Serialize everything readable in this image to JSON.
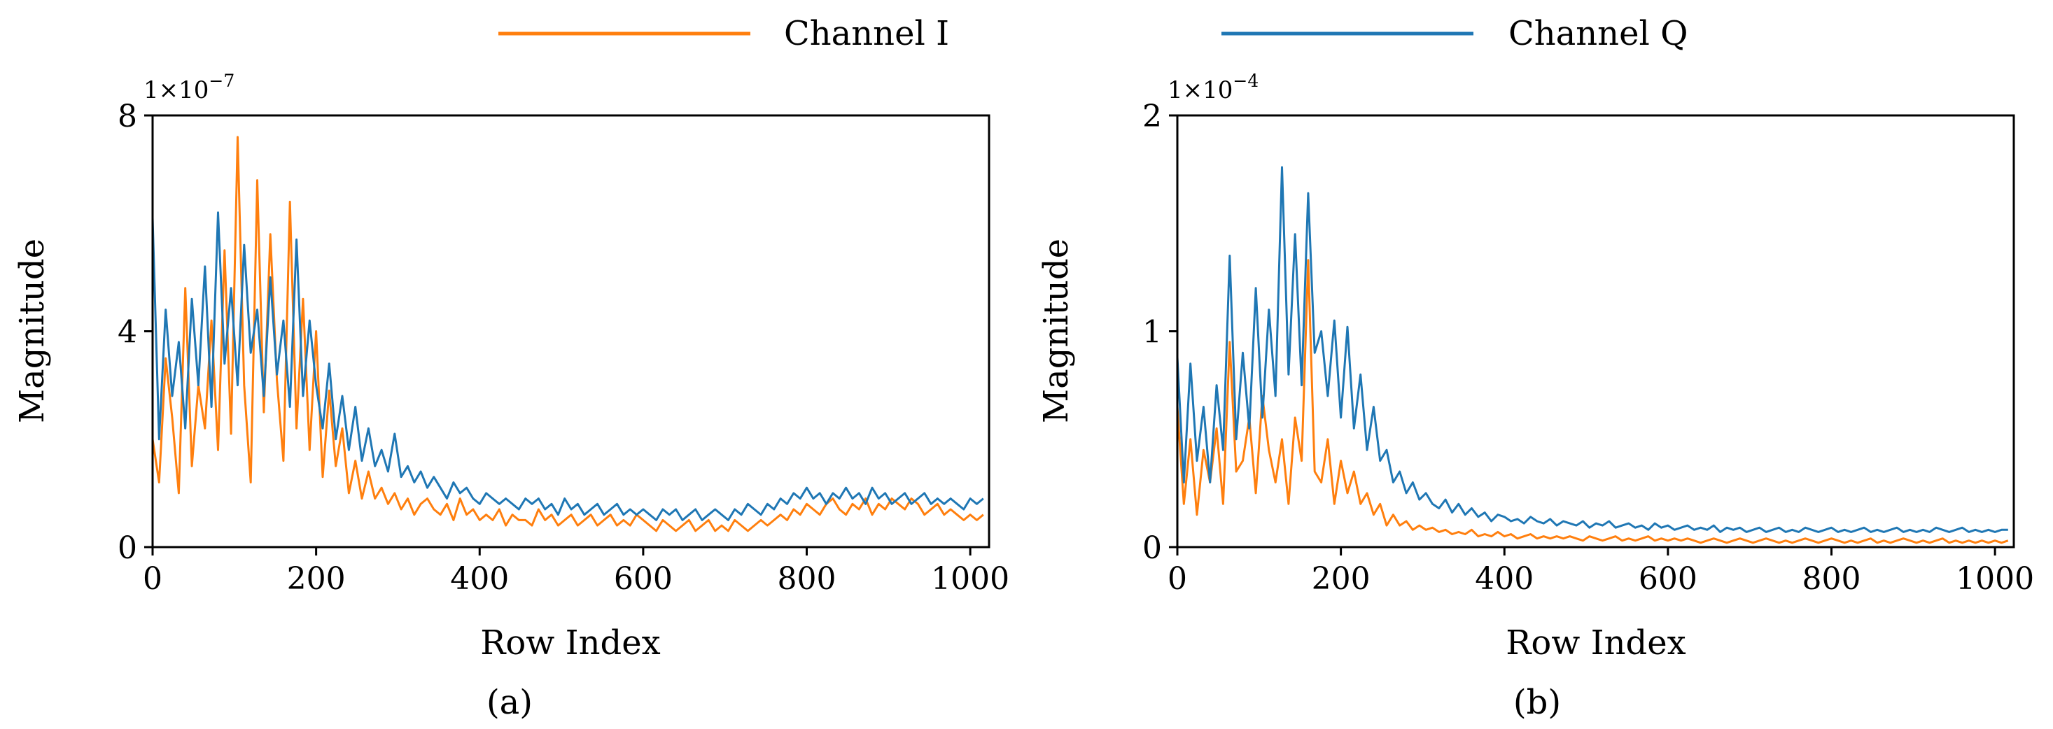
{
  "legend": {
    "entries": [
      {
        "label": "Channel I",
        "color": "#ff7f0e"
      },
      {
        "label": "Channel Q",
        "color": "#1f77b4"
      }
    ],
    "placement": "top-center"
  },
  "chart_data": [
    {
      "type": "line",
      "panel_label": "(a)",
      "title": "",
      "xlabel": "Row Index",
      "ylabel": "Magnitude",
      "exponent_base": "1×10",
      "exponent_power": "−7",
      "xlim": [
        0,
        1023
      ],
      "ylim": [
        0,
        8
      ],
      "xticks": [
        0,
        200,
        400,
        600,
        800,
        1000
      ],
      "yticks": [
        0,
        4,
        8
      ],
      "grid": false,
      "series": [
        {
          "name": "Channel I",
          "color": "#ff7f0e",
          "sampling": "every 8 rows, x = 0..1016",
          "values": [
            2.0,
            1.2,
            3.5,
            2.4,
            1.0,
            4.8,
            1.5,
            3.0,
            2.2,
            4.2,
            1.8,
            5.5,
            2.1,
            7.6,
            3.0,
            1.2,
            6.8,
            2.5,
            5.8,
            3.1,
            1.6,
            6.4,
            2.2,
            4.6,
            1.8,
            4.0,
            1.3,
            2.9,
            1.5,
            2.2,
            1.0,
            1.6,
            0.9,
            1.4,
            0.9,
            1.1,
            0.8,
            1.0,
            0.7,
            0.9,
            0.6,
            0.8,
            0.9,
            0.7,
            0.6,
            0.8,
            0.5,
            0.9,
            0.6,
            0.7,
            0.5,
            0.6,
            0.5,
            0.7,
            0.4,
            0.6,
            0.5,
            0.5,
            0.4,
            0.7,
            0.5,
            0.6,
            0.4,
            0.5,
            0.6,
            0.4,
            0.5,
            0.6,
            0.4,
            0.5,
            0.6,
            0.4,
            0.5,
            0.4,
            0.6,
            0.5,
            0.4,
            0.3,
            0.5,
            0.4,
            0.3,
            0.4,
            0.5,
            0.3,
            0.4,
            0.5,
            0.3,
            0.4,
            0.3,
            0.5,
            0.4,
            0.3,
            0.4,
            0.5,
            0.4,
            0.5,
            0.6,
            0.5,
            0.7,
            0.6,
            0.8,
            0.7,
            0.6,
            0.8,
            0.9,
            0.7,
            0.6,
            0.8,
            0.7,
            0.9,
            0.6,
            0.8,
            0.7,
            0.9,
            0.8,
            0.7,
            0.9,
            0.8,
            0.6,
            0.7,
            0.8,
            0.6,
            0.7,
            0.6,
            0.5,
            0.6,
            0.5,
            0.6
          ]
        },
        {
          "name": "Channel Q",
          "color": "#1f77b4",
          "sampling": "every 8 rows, x = 0..1016",
          "values": [
            6.1,
            2.0,
            4.4,
            2.8,
            3.8,
            2.2,
            4.6,
            3.0,
            5.2,
            2.6,
            6.2,
            3.4,
            4.8,
            3.0,
            5.6,
            3.6,
            4.4,
            2.8,
            5.0,
            3.2,
            4.2,
            2.6,
            5.7,
            2.8,
            4.2,
            3.0,
            2.2,
            3.4,
            2.0,
            2.8,
            1.8,
            2.6,
            1.6,
            2.2,
            1.5,
            1.8,
            1.4,
            2.1,
            1.3,
            1.5,
            1.2,
            1.4,
            1.1,
            1.3,
            1.1,
            0.9,
            1.2,
            1.0,
            1.1,
            0.9,
            0.8,
            1.0,
            0.9,
            0.8,
            0.9,
            0.8,
            0.7,
            0.9,
            0.8,
            0.9,
            0.7,
            0.8,
            0.6,
            0.9,
            0.7,
            0.8,
            0.6,
            0.7,
            0.8,
            0.6,
            0.7,
            0.8,
            0.6,
            0.7,
            0.6,
            0.7,
            0.6,
            0.5,
            0.7,
            0.6,
            0.7,
            0.5,
            0.6,
            0.7,
            0.5,
            0.6,
            0.7,
            0.6,
            0.5,
            0.7,
            0.6,
            0.8,
            0.7,
            0.6,
            0.8,
            0.7,
            0.9,
            0.8,
            1.0,
            0.9,
            1.1,
            0.9,
            1.0,
            0.8,
            1.0,
            0.9,
            1.1,
            0.9,
            1.0,
            0.8,
            1.1,
            0.9,
            1.0,
            0.8,
            0.9,
            1.0,
            0.8,
            0.9,
            1.0,
            0.8,
            0.9,
            0.8,
            0.9,
            0.8,
            0.7,
            0.9,
            0.8,
            0.9
          ]
        }
      ]
    },
    {
      "type": "line",
      "panel_label": "(b)",
      "title": "",
      "xlabel": "Row Index",
      "ylabel": "Magnitude",
      "exponent_base": "1×10",
      "exponent_power": "−4",
      "xlim": [
        0,
        1023
      ],
      "ylim": [
        0,
        2
      ],
      "xticks": [
        0,
        200,
        400,
        600,
        800,
        1000
      ],
      "yticks": [
        0,
        1,
        2
      ],
      "grid": false,
      "series": [
        {
          "name": "Channel I",
          "color": "#ff7f0e",
          "sampling": "every 8 rows, x = 0..1016",
          "values": [
            0.65,
            0.2,
            0.5,
            0.15,
            0.45,
            0.3,
            0.55,
            0.2,
            0.95,
            0.35,
            0.4,
            0.6,
            0.25,
            0.7,
            0.45,
            0.3,
            0.5,
            0.2,
            0.6,
            0.4,
            1.33,
            0.35,
            0.3,
            0.5,
            0.2,
            0.4,
            0.25,
            0.35,
            0.2,
            0.25,
            0.15,
            0.2,
            0.1,
            0.15,
            0.1,
            0.12,
            0.08,
            0.1,
            0.08,
            0.09,
            0.07,
            0.08,
            0.06,
            0.07,
            0.06,
            0.08,
            0.05,
            0.06,
            0.05,
            0.07,
            0.05,
            0.06,
            0.04,
            0.05,
            0.06,
            0.04,
            0.05,
            0.04,
            0.05,
            0.04,
            0.05,
            0.04,
            0.03,
            0.05,
            0.04,
            0.03,
            0.04,
            0.05,
            0.03,
            0.04,
            0.03,
            0.04,
            0.05,
            0.03,
            0.04,
            0.03,
            0.04,
            0.03,
            0.04,
            0.03,
            0.02,
            0.03,
            0.04,
            0.03,
            0.02,
            0.03,
            0.04,
            0.03,
            0.02,
            0.03,
            0.04,
            0.03,
            0.02,
            0.03,
            0.02,
            0.03,
            0.04,
            0.03,
            0.02,
            0.03,
            0.04,
            0.03,
            0.02,
            0.03,
            0.02,
            0.03,
            0.04,
            0.02,
            0.03,
            0.02,
            0.03,
            0.04,
            0.03,
            0.02,
            0.03,
            0.02,
            0.03,
            0.04,
            0.02,
            0.03,
            0.02,
            0.03,
            0.02,
            0.03,
            0.02,
            0.03,
            0.02,
            0.03
          ]
        },
        {
          "name": "Channel Q",
          "color": "#1f77b4",
          "sampling": "every 8 rows, x = 0..1016",
          "values": [
            0.88,
            0.3,
            0.85,
            0.4,
            0.65,
            0.3,
            0.75,
            0.45,
            1.35,
            0.5,
            0.9,
            0.55,
            1.2,
            0.6,
            1.1,
            0.7,
            1.76,
            0.8,
            1.45,
            0.75,
            1.64,
            0.9,
            1.0,
            0.7,
            1.05,
            0.6,
            1.02,
            0.55,
            0.8,
            0.45,
            0.65,
            0.4,
            0.45,
            0.3,
            0.35,
            0.25,
            0.3,
            0.22,
            0.25,
            0.2,
            0.18,
            0.22,
            0.16,
            0.2,
            0.15,
            0.18,
            0.14,
            0.16,
            0.12,
            0.15,
            0.14,
            0.12,
            0.13,
            0.11,
            0.14,
            0.12,
            0.11,
            0.13,
            0.1,
            0.12,
            0.11,
            0.1,
            0.12,
            0.09,
            0.11,
            0.1,
            0.12,
            0.09,
            0.1,
            0.11,
            0.09,
            0.1,
            0.08,
            0.11,
            0.09,
            0.1,
            0.08,
            0.09,
            0.1,
            0.08,
            0.09,
            0.08,
            0.1,
            0.07,
            0.09,
            0.08,
            0.09,
            0.07,
            0.08,
            0.09,
            0.07,
            0.08,
            0.09,
            0.07,
            0.08,
            0.07,
            0.09,
            0.08,
            0.07,
            0.08,
            0.09,
            0.07,
            0.08,
            0.07,
            0.08,
            0.09,
            0.07,
            0.08,
            0.07,
            0.08,
            0.09,
            0.07,
            0.08,
            0.07,
            0.08,
            0.07,
            0.09,
            0.08,
            0.07,
            0.08,
            0.09,
            0.07,
            0.08,
            0.07,
            0.08,
            0.07,
            0.08,
            0.08
          ]
        }
      ]
    }
  ]
}
